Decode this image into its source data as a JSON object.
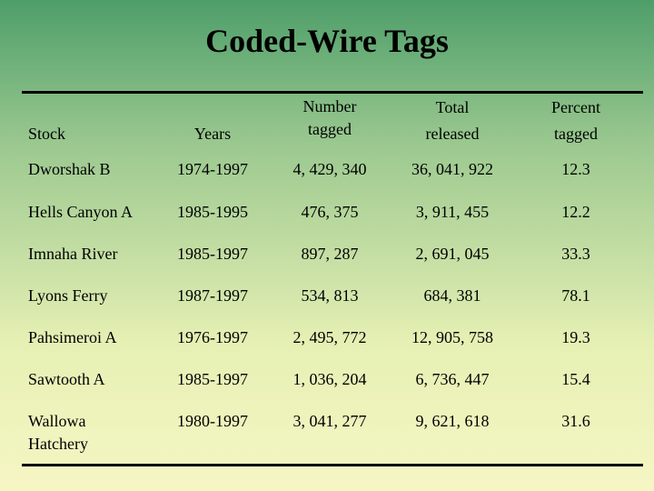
{
  "title": "Coded-Wire Tags",
  "table": {
    "header": [
      [
        "Stock"
      ],
      [
        "Years"
      ],
      [
        "Number",
        "tagged"
      ],
      [
        "Total",
        "released"
      ],
      [
        "Percent",
        "tagged"
      ]
    ],
    "rows": [
      [
        "Dworshak B",
        "1974-1997",
        "4, 429, 340",
        "36, 041, 922",
        "12.3"
      ],
      [
        "Hells Canyon A",
        "1985-1995",
        "476, 375",
        "3, 911, 455",
        "12.2"
      ],
      [
        "Imnaha River",
        "1985-1997",
        "897, 287",
        "2, 691, 045",
        "33.3"
      ],
      [
        "Lyons Ferry",
        "1987-1997",
        "534, 813",
        "684, 381",
        "78.1"
      ],
      [
        "Pahsimeroi A",
        "1976-1997",
        "2, 495, 772",
        "12, 905, 758",
        "19.3"
      ],
      [
        "Sawtooth A",
        "1985-1997",
        "1, 036, 204",
        "6, 736, 447",
        "15.4"
      ],
      [
        "Wallowa Hatchery",
        "1980-1997",
        "3, 041, 277",
        "9, 621, 618",
        "31.6"
      ]
    ]
  }
}
